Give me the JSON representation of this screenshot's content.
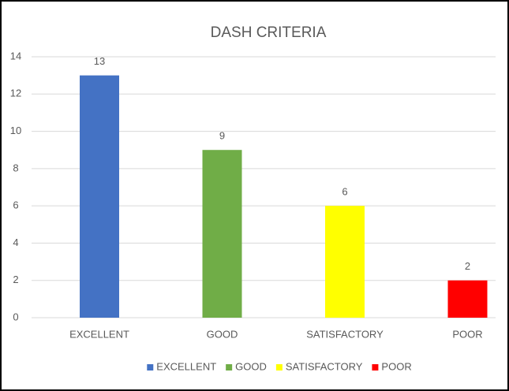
{
  "chart_data": {
    "type": "bar",
    "title": "DASH CRITERIA",
    "categories": [
      "EXCELLENT",
      "GOOD",
      "SATISFACTORY",
      "POOR"
    ],
    "values": [
      13,
      9,
      6,
      2
    ],
    "colors": [
      "#4472c4",
      "#70ad47",
      "#ffff00",
      "#ff0000"
    ],
    "ylim": [
      0,
      14
    ],
    "yticks": [
      0,
      2,
      4,
      6,
      8,
      10,
      12,
      14
    ],
    "grid": true,
    "legend": "bottom",
    "data_labels": true
  }
}
